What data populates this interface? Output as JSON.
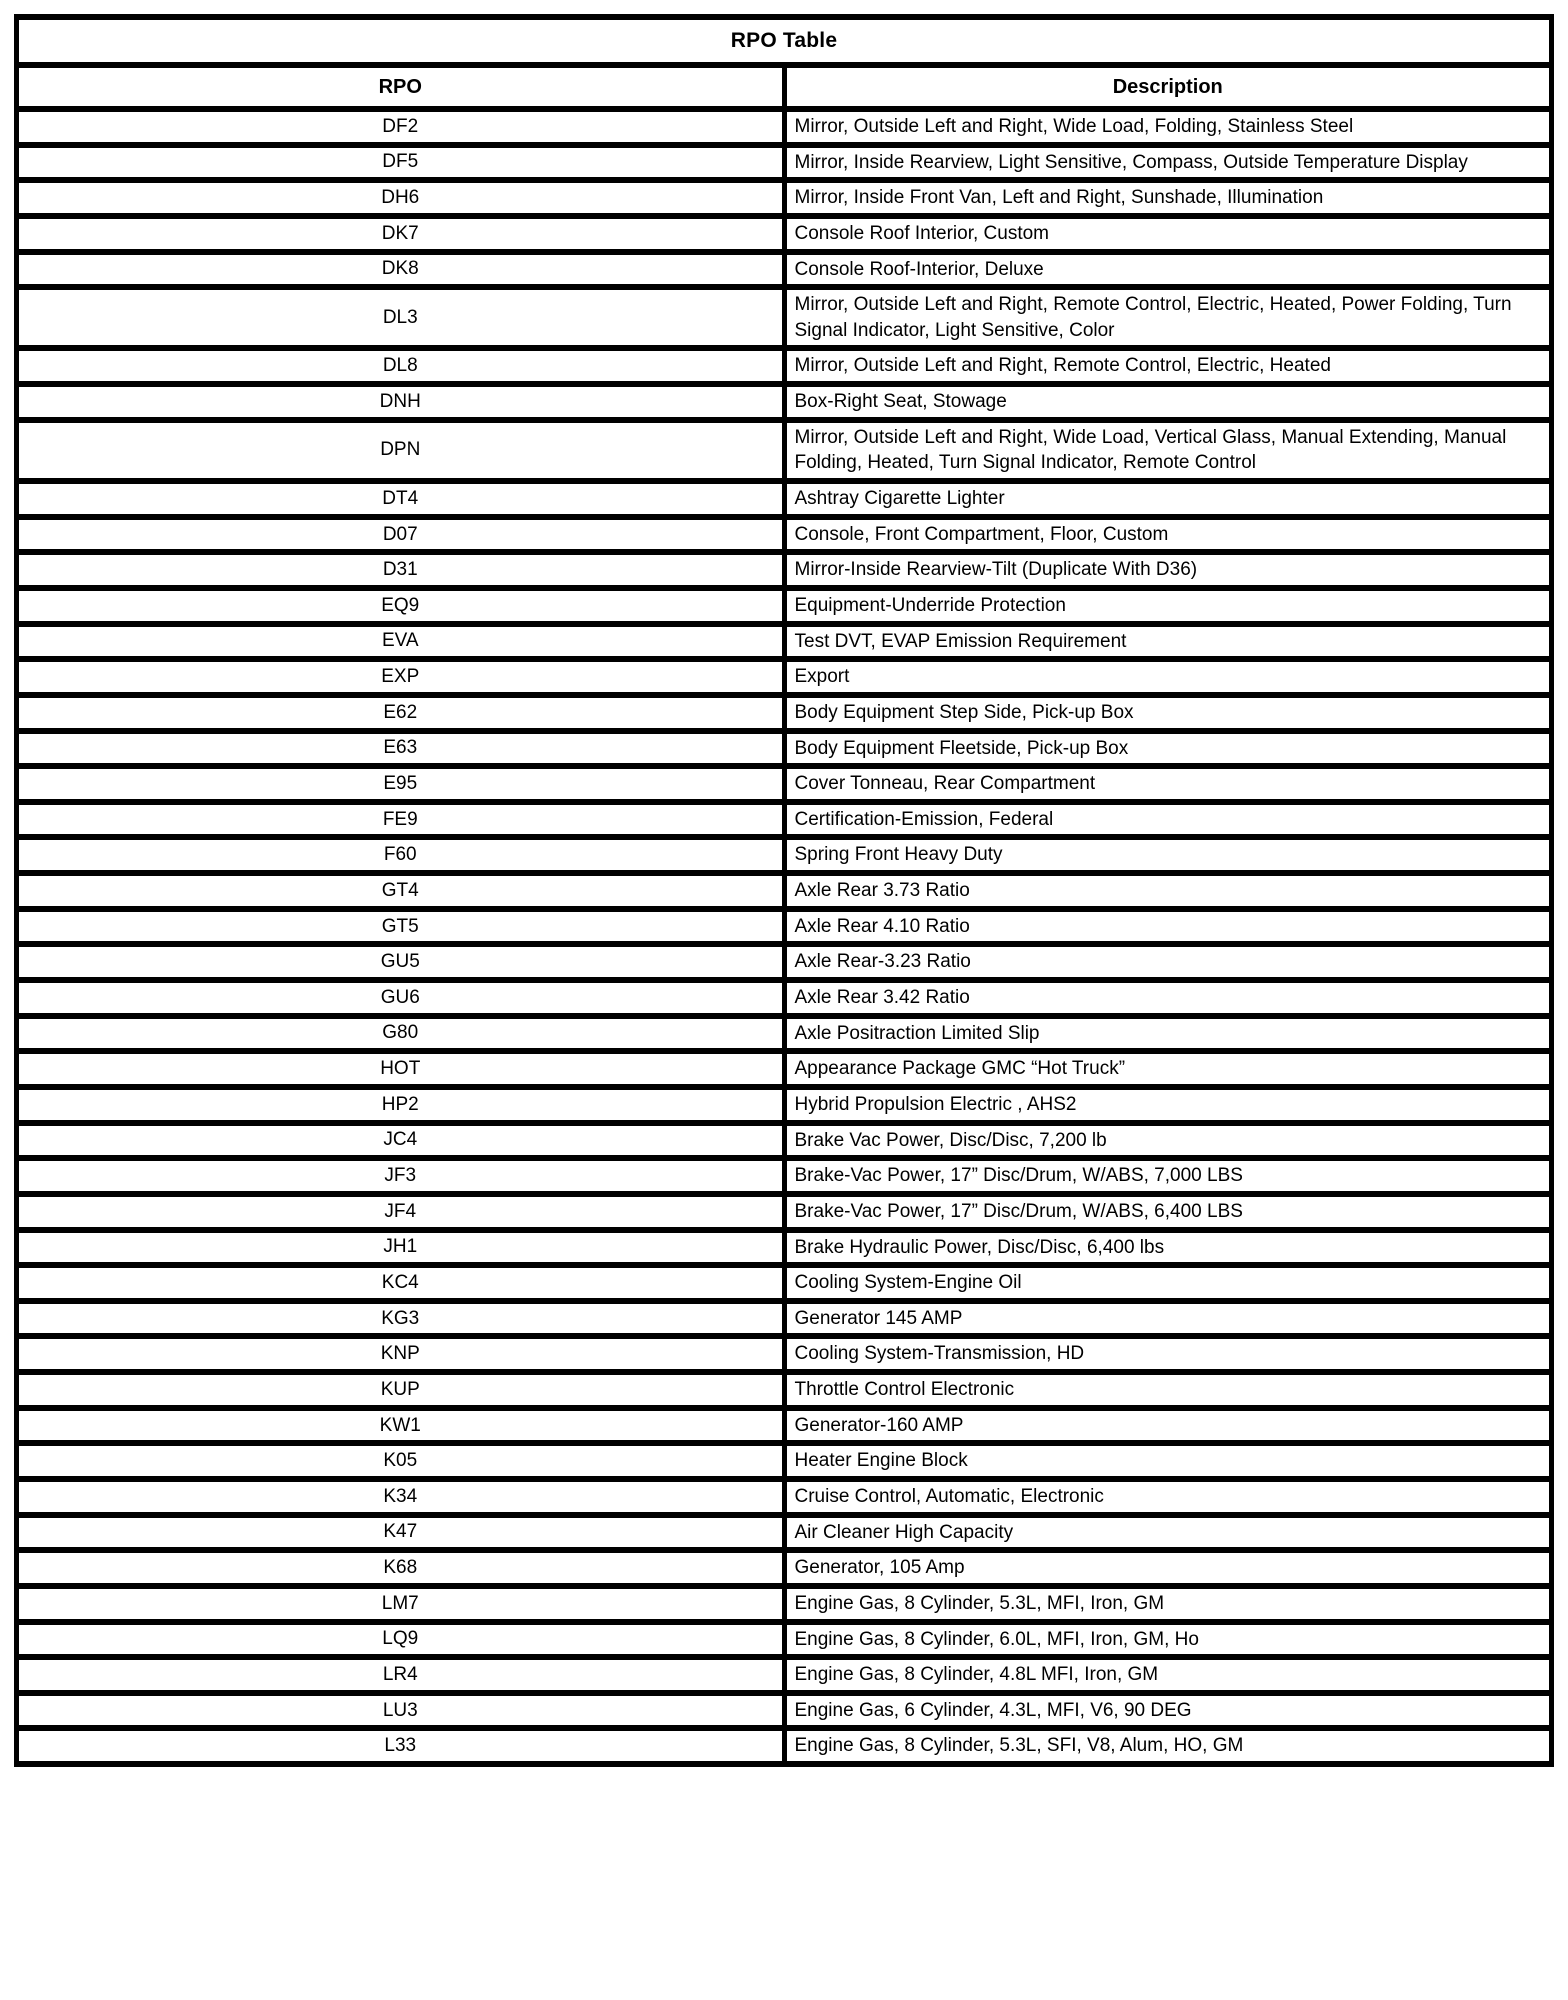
{
  "table": {
    "title": "RPO Table",
    "columns": [
      "RPO",
      "Description"
    ],
    "rows": [
      {
        "rpo": "DF2",
        "description": "Mirror, Outside Left and Right, Wide Load, Folding, Stainless Steel"
      },
      {
        "rpo": "DF5",
        "description": "Mirror, Inside Rearview, Light Sensitive, Compass, Outside Temperature Display"
      },
      {
        "rpo": "DH6",
        "description": "Mirror, Inside Front Van, Left and Right, Sunshade, Illumination"
      },
      {
        "rpo": "DK7",
        "description": "Console Roof Interior, Custom"
      },
      {
        "rpo": "DK8",
        "description": "Console Roof-Interior, Deluxe"
      },
      {
        "rpo": "DL3",
        "description": "Mirror, Outside Left and Right, Remote Control, Electric, Heated, Power Folding, Turn Signal Indicator, Light Sensitive, Color"
      },
      {
        "rpo": "DL8",
        "description": "Mirror, Outside Left and Right, Remote Control, Electric, Heated"
      },
      {
        "rpo": "DNH",
        "description": "Box-Right Seat, Stowage"
      },
      {
        "rpo": "DPN",
        "description": "Mirror, Outside Left and Right, Wide Load, Vertical Glass, Manual Extending, Manual Folding, Heated, Turn Signal Indicator, Remote Control"
      },
      {
        "rpo": "DT4",
        "description": "Ashtray Cigarette Lighter"
      },
      {
        "rpo": "D07",
        "description": "Console, Front Compartment, Floor, Custom"
      },
      {
        "rpo": "D31",
        "description": "Mirror-Inside Rearview-Tilt (Duplicate With D36)"
      },
      {
        "rpo": "EQ9",
        "description": "Equipment-Underride Protection"
      },
      {
        "rpo": "EVA",
        "description": "Test DVT, EVAP Emission Requirement"
      },
      {
        "rpo": "EXP",
        "description": "Export"
      },
      {
        "rpo": "E62",
        "description": "Body Equipment Step Side, Pick-up Box"
      },
      {
        "rpo": "E63",
        "description": "Body Equipment Fleetside, Pick-up Box"
      },
      {
        "rpo": "E95",
        "description": "Cover Tonneau, Rear Compartment"
      },
      {
        "rpo": "FE9",
        "description": "Certification-Emission, Federal"
      },
      {
        "rpo": "F60",
        "description": "Spring Front Heavy Duty"
      },
      {
        "rpo": "GT4",
        "description": "Axle Rear 3.73 Ratio"
      },
      {
        "rpo": "GT5",
        "description": "Axle Rear 4.10 Ratio"
      },
      {
        "rpo": "GU5",
        "description": "Axle Rear-3.23 Ratio"
      },
      {
        "rpo": "GU6",
        "description": "Axle Rear 3.42 Ratio"
      },
      {
        "rpo": "G80",
        "description": "Axle Positraction Limited Slip"
      },
      {
        "rpo": "HOT",
        "description": "Appearance Package GMC “Hot Truck”"
      },
      {
        "rpo": "HP2",
        "description": "Hybrid Propulsion Electric , AHS2"
      },
      {
        "rpo": "JC4",
        "description": "Brake Vac Power, Disc/Disc, 7,200 lb"
      },
      {
        "rpo": "JF3",
        "description": "Brake-Vac Power, 17” Disc/Drum, W/ABS, 7,000 LBS"
      },
      {
        "rpo": "JF4",
        "description": "Brake-Vac Power, 17” Disc/Drum, W/ABS, 6,400 LBS"
      },
      {
        "rpo": "JH1",
        "description": "Brake Hydraulic Power, Disc/Disc, 6,400 lbs"
      },
      {
        "rpo": "KC4",
        "description": "Cooling System-Engine Oil"
      },
      {
        "rpo": "KG3",
        "description": "Generator 145 AMP"
      },
      {
        "rpo": "KNP",
        "description": "Cooling System-Transmission, HD"
      },
      {
        "rpo": "KUP",
        "description": "Throttle Control Electronic"
      },
      {
        "rpo": "KW1",
        "description": "Generator-160 AMP"
      },
      {
        "rpo": "K05",
        "description": "Heater Engine Block"
      },
      {
        "rpo": "K34",
        "description": "Cruise Control, Automatic, Electronic"
      },
      {
        "rpo": "K47",
        "description": "Air Cleaner High Capacity"
      },
      {
        "rpo": "K68",
        "description": "Generator, 105 Amp"
      },
      {
        "rpo": "LM7",
        "description": "Engine Gas, 8 Cylinder, 5.3L, MFI, Iron, GM"
      },
      {
        "rpo": "LQ9",
        "description": "Engine Gas, 8 Cylinder, 6.0L, MFI, Iron, GM, Ho"
      },
      {
        "rpo": "LR4",
        "description": "Engine Gas, 8 Cylinder, 4.8L MFI, Iron, GM"
      },
      {
        "rpo": "LU3",
        "description": "Engine Gas, 6 Cylinder, 4.3L, MFI, V6, 90 DEG"
      },
      {
        "rpo": "L33",
        "description": "Engine Gas, 8 Cylinder, 5.3L, SFI, V8, Alum, HO, GM"
      }
    ]
  }
}
